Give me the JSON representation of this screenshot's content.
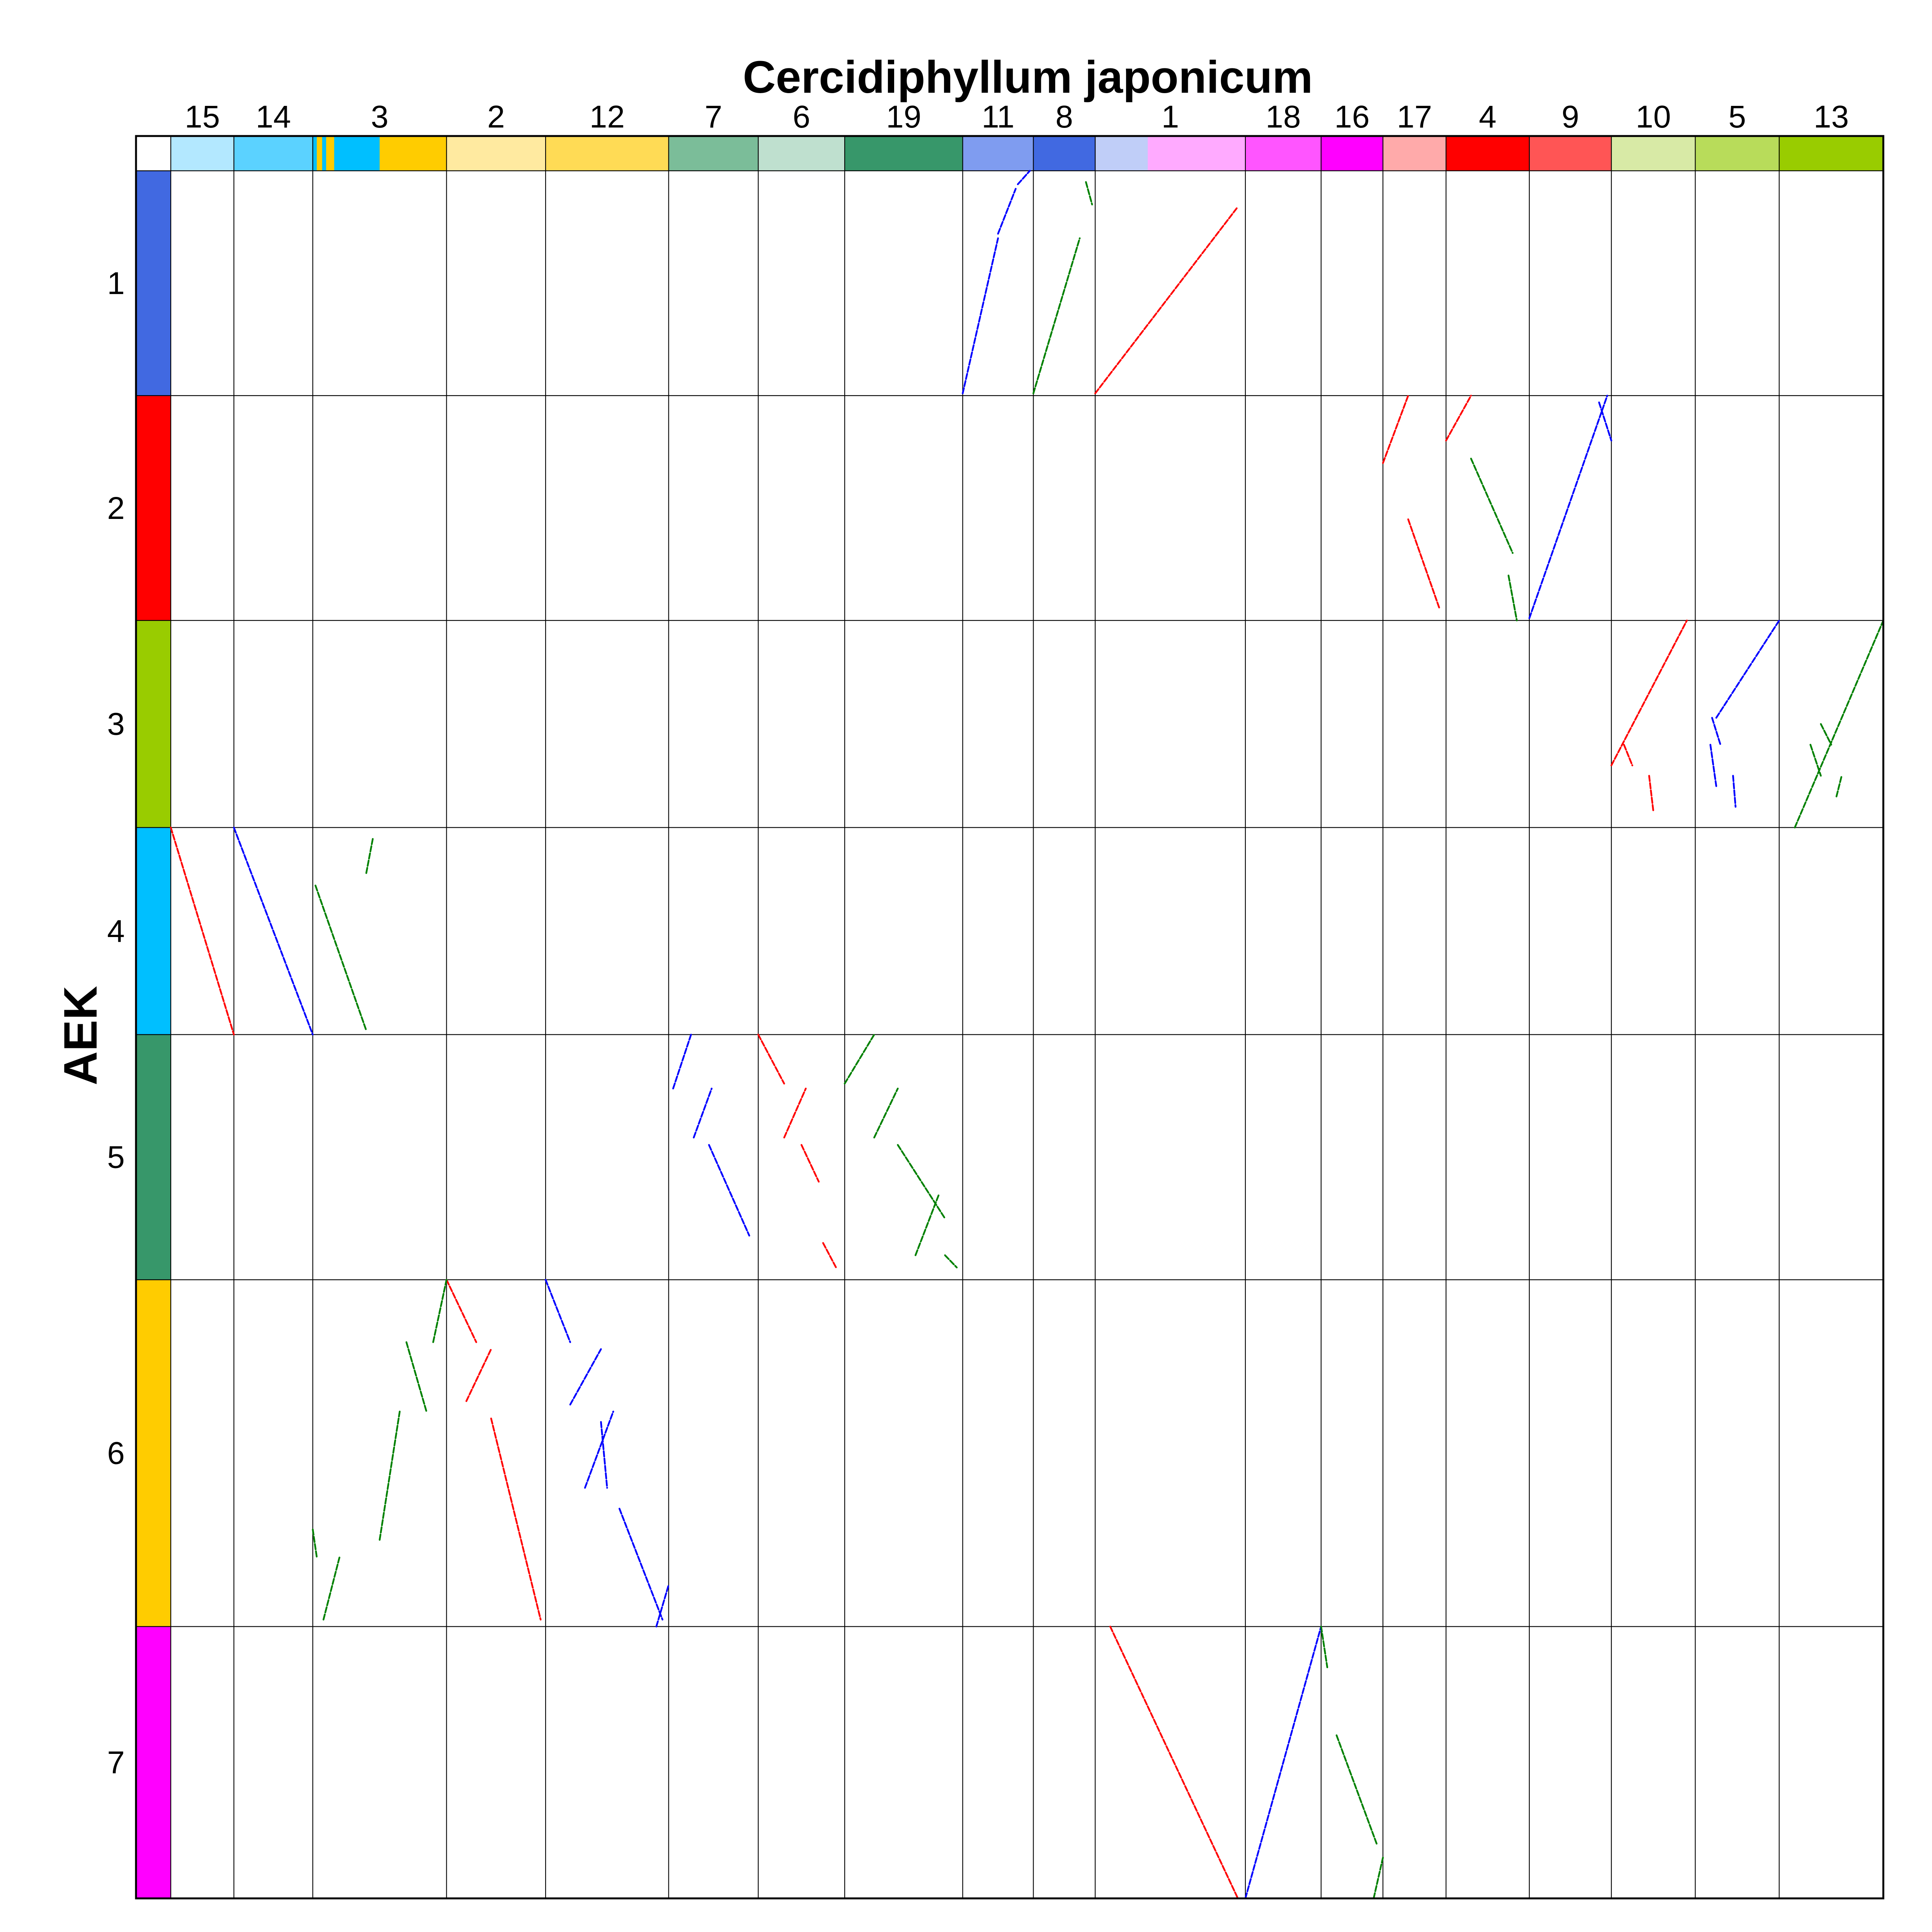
{
  "chart_data": {
    "type": "scatter",
    "title": "",
    "xlabel": "Cercidiphyllum japonicum",
    "ylabel": "AEK",
    "grid": true,
    "x_chromosomes": [
      {
        "name": "15",
        "length": 1.0,
        "color": "#b3e8ff"
      },
      {
        "name": "14",
        "length": 1.25,
        "color": "#5bd2ff"
      },
      {
        "name": "3",
        "length": 2.12,
        "color": "#00bfff"
      },
      {
        "name": "2",
        "length": 1.57,
        "color": "#ffeaa0"
      },
      {
        "name": "12",
        "length": 1.95,
        "color": "#ffdb55"
      },
      {
        "name": "7",
        "length": 1.42,
        "color": "#7bbd99"
      },
      {
        "name": "6",
        "length": 1.37,
        "color": "#bfe0cf"
      },
      {
        "name": "19",
        "length": 1.87,
        "color": "#37976a"
      },
      {
        "name": "11",
        "length": 1.12,
        "color": "#7f9cf0"
      },
      {
        "name": "8",
        "length": 0.98,
        "color": "#4169e1"
      },
      {
        "name": "1",
        "length": 2.38,
        "color": "#ffaaff"
      },
      {
        "name": "18",
        "length": 1.2,
        "color": "#ff55ff"
      },
      {
        "name": "16",
        "length": 0.98,
        "color": "#ff00ff"
      },
      {
        "name": "17",
        "length": 1.0,
        "color": "#ffaaaa"
      },
      {
        "name": "4",
        "length": 1.32,
        "color": "#ff0000"
      },
      {
        "name": "9",
        "length": 1.3,
        "color": "#ff5555"
      },
      {
        "name": "10",
        "length": 1.33,
        "color": "#d8eaa6"
      },
      {
        "name": "5",
        "length": 1.33,
        "color": "#b8dc5a"
      },
      {
        "name": "13",
        "length": 1.65,
        "color": "#99cc00"
      }
    ],
    "x_color_detail": {
      "3": [
        {
          "from": 0.0,
          "to": 0.03,
          "color": "#00bfff"
        },
        {
          "from": 0.03,
          "to": 0.07,
          "color": "#ffcc00"
        },
        {
          "from": 0.07,
          "to": 0.1,
          "color": "#00bfff"
        },
        {
          "from": 0.1,
          "to": 0.16,
          "color": "#ffcc00"
        },
        {
          "from": 0.16,
          "to": 0.5,
          "color": "#00bfff"
        },
        {
          "from": 0.5,
          "to": 1.0,
          "color": "#ffcc00"
        }
      ],
      "1": [
        {
          "from": 0.0,
          "to": 0.35,
          "color": "#c0cef8"
        },
        {
          "from": 0.35,
          "to": 1.0,
          "color": "#ffaaff"
        }
      ]
    },
    "y_chromosomes": [
      {
        "name": "1",
        "length": 1.77,
        "color": "#4169e1"
      },
      {
        "name": "2",
        "length": 1.77,
        "color": "#ff0000"
      },
      {
        "name": "3",
        "length": 1.63,
        "color": "#99cc00"
      },
      {
        "name": "4",
        "length": 1.63,
        "color": "#00bfff"
      },
      {
        "name": "5",
        "length": 1.93,
        "color": "#37976a"
      },
      {
        "name": "6",
        "length": 2.73,
        "color": "#ffcc00"
      },
      {
        "name": "7",
        "length": 2.14,
        "color": "#ff00ff"
      }
    ],
    "series": [
      {
        "color": "#0000ff",
        "segments": [
          {
            "x": "11",
            "y": "1",
            "x1": 0.0,
            "y1": 0.99,
            "x2": 0.5,
            "y2": 0.3
          },
          {
            "x": "11",
            "y": "1",
            "x1": 0.5,
            "y1": 0.28,
            "x2": 0.75,
            "y2": 0.08
          },
          {
            "x": "11",
            "y": "1",
            "x1": 0.78,
            "y1": 0.06,
            "x2": 0.95,
            "y2": 0.0
          },
          {
            "x": "14",
            "y": "4",
            "x1": 0.0,
            "y1": 0.0,
            "x2": 1.0,
            "y2": 1.0
          },
          {
            "x": "9",
            "y": "2",
            "x1": 0.0,
            "y1": 0.99,
            "x2": 0.95,
            "y2": 0.0
          },
          {
            "x": "9",
            "y": "2",
            "x1": 0.85,
            "y1": 0.03,
            "x2": 1.0,
            "y2": 0.2
          },
          {
            "x": "5",
            "y": "3",
            "x1": 0.25,
            "y1": 0.47,
            "x2": 1.0,
            "y2": 0.0
          },
          {
            "x": "5",
            "y": "3",
            "x1": 0.2,
            "y1": 0.47,
            "x2": 0.3,
            "y2": 0.6
          },
          {
            "x": "5",
            "y": "3",
            "x1": 0.18,
            "y1": 0.6,
            "x2": 0.25,
            "y2": 0.8
          },
          {
            "x": "5",
            "y": "3",
            "x1": 0.45,
            "y1": 0.75,
            "x2": 0.48,
            "y2": 0.9
          },
          {
            "x": "7",
            "y": "5",
            "x1": 0.05,
            "y1": 0.22,
            "x2": 0.25,
            "y2": 0.0
          },
          {
            "x": "7",
            "y": "5",
            "x1": 0.28,
            "y1": 0.42,
            "x2": 0.48,
            "y2": 0.22
          },
          {
            "x": "7",
            "y": "5",
            "x1": 0.45,
            "y1": 0.45,
            "x2": 0.9,
            "y2": 0.82
          },
          {
            "x": "12",
            "y": "6",
            "x1": 0.0,
            "y1": 0.0,
            "x2": 0.2,
            "y2": 0.18
          },
          {
            "x": "12",
            "y": "6",
            "x1": 0.2,
            "y1": 0.36,
            "x2": 0.45,
            "y2": 0.2
          },
          {
            "x": "12",
            "y": "6",
            "x1": 0.45,
            "y1": 0.41,
            "x2": 0.5,
            "y2": 0.6
          },
          {
            "x": "12",
            "y": "6",
            "x1": 0.32,
            "y1": 0.6,
            "x2": 0.55,
            "y2": 0.38
          },
          {
            "x": "12",
            "y": "6",
            "x1": 0.6,
            "y1": 0.66,
            "x2": 0.95,
            "y2": 0.98
          },
          {
            "x": "12",
            "y": "6",
            "x1": 0.9,
            "y1": 1.0,
            "x2": 1.0,
            "y2": 0.88
          },
          {
            "x": "18",
            "y": "7",
            "x1": 0.0,
            "y1": 1.0,
            "x2": 1.0,
            "y2": 0.0
          }
        ]
      },
      {
        "color": "#ff0000",
        "segments": [
          {
            "x": "1",
            "y": "1",
            "x1": 0.0,
            "y1": 0.99,
            "x2": 0.95,
            "y2": 0.16
          },
          {
            "x": "1",
            "y": "7",
            "x1": 0.1,
            "y1": 0.0,
            "x2": 0.95,
            "y2": 1.0
          },
          {
            "x": "15",
            "y": "4",
            "x1": 0.0,
            "y1": 0.0,
            "x2": 1.0,
            "y2": 1.0
          },
          {
            "x": "17",
            "y": "2",
            "x1": 0.0,
            "y1": 0.3,
            "x2": 0.4,
            "y2": 0.0
          },
          {
            "x": "17",
            "y": "2",
            "x1": 0.4,
            "y1": 0.55,
            "x2": 0.9,
            "y2": 0.95
          },
          {
            "x": "4",
            "y": "2",
            "x1": 0.0,
            "y1": 0.2,
            "x2": 0.3,
            "y2": 0.0
          },
          {
            "x": "6",
            "y": "5",
            "x1": 0.0,
            "y1": 0.0,
            "x2": 0.3,
            "y2": 0.2
          },
          {
            "x": "6",
            "y": "5",
            "x1": 0.3,
            "y1": 0.42,
            "x2": 0.55,
            "y2": 0.22
          },
          {
            "x": "6",
            "y": "5",
            "x1": 0.5,
            "y1": 0.45,
            "x2": 0.7,
            "y2": 0.6
          },
          {
            "x": "6",
            "y": "5",
            "x1": 0.75,
            "y1": 0.85,
            "x2": 0.9,
            "y2": 0.95
          },
          {
            "x": "2",
            "y": "6",
            "x1": 0.0,
            "y1": 0.0,
            "x2": 0.3,
            "y2": 0.18
          },
          {
            "x": "2",
            "y": "6",
            "x1": 0.2,
            "y1": 0.35,
            "x2": 0.45,
            "y2": 0.2
          },
          {
            "x": "2",
            "y": "6",
            "x1": 0.45,
            "y1": 0.4,
            "x2": 0.95,
            "y2": 0.98
          },
          {
            "x": "10",
            "y": "3",
            "x1": 0.0,
            "y1": 0.7,
            "x2": 0.9,
            "y2": 0.0
          },
          {
            "x": "10",
            "y": "3",
            "x1": 0.15,
            "y1": 0.6,
            "x2": 0.25,
            "y2": 0.7
          },
          {
            "x": "10",
            "y": "3",
            "x1": 0.45,
            "y1": 0.75,
            "x2": 0.5,
            "y2": 0.92
          }
        ]
      },
      {
        "color": "#008000",
        "segments": [
          {
            "x": "8",
            "y": "1",
            "x1": 0.0,
            "y1": 0.99,
            "x2": 0.75,
            "y2": 0.3
          },
          {
            "x": "8",
            "y": "1",
            "x1": 0.85,
            "y1": 0.05,
            "x2": 0.95,
            "y2": 0.15
          },
          {
            "x": "3",
            "y": "4",
            "x1": 0.02,
            "y1": 0.28,
            "x2": 0.4,
            "y2": 0.98
          },
          {
            "x": "3",
            "y": "4",
            "x1": 0.4,
            "y1": 0.22,
            "x2": 0.45,
            "y2": 0.05
          },
          {
            "x": "3",
            "y": "6",
            "x1": 0.0,
            "y1": 0.72,
            "x2": 0.03,
            "y2": 0.8
          },
          {
            "x": "3",
            "y": "6",
            "x1": 0.08,
            "y1": 0.98,
            "x2": 0.2,
            "y2": 0.8
          },
          {
            "x": "3",
            "y": "6",
            "x1": 0.5,
            "y1": 0.75,
            "x2": 0.65,
            "y2": 0.38
          },
          {
            "x": "3",
            "y": "6",
            "x1": 0.7,
            "y1": 0.18,
            "x2": 0.85,
            "y2": 0.38
          },
          {
            "x": "3",
            "y": "6",
            "x1": 0.9,
            "y1": 0.18,
            "x2": 1.0,
            "y2": 0.0
          },
          {
            "x": "4",
            "y": "2",
            "x1": 0.3,
            "y1": 0.28,
            "x2": 0.8,
            "y2": 0.7
          },
          {
            "x": "4",
            "y": "2",
            "x1": 0.75,
            "y1": 0.8,
            "x2": 0.85,
            "y2": 1.0
          },
          {
            "x": "19",
            "y": "5",
            "x1": 0.0,
            "y1": 0.2,
            "x2": 0.25,
            "y2": 0.0
          },
          {
            "x": "19",
            "y": "5",
            "x1": 0.25,
            "y1": 0.42,
            "x2": 0.45,
            "y2": 0.22
          },
          {
            "x": "19",
            "y": "5",
            "x1": 0.45,
            "y1": 0.45,
            "x2": 0.85,
            "y2": 0.75
          },
          {
            "x": "19",
            "y": "5",
            "x1": 0.6,
            "y1": 0.9,
            "x2": 0.8,
            "y2": 0.65
          },
          {
            "x": "19",
            "y": "5",
            "x1": 0.85,
            "y1": 0.9,
            "x2": 0.95,
            "y2": 0.95
          },
          {
            "x": "16",
            "y": "7",
            "x1": 0.25,
            "y1": 0.4,
            "x2": 0.9,
            "y2": 0.8
          },
          {
            "x": "16",
            "y": "7",
            "x1": 0.85,
            "y1": 1.0,
            "x2": 1.0,
            "y2": 0.85
          },
          {
            "x": "16",
            "y": "7",
            "x1": 0.0,
            "y1": 0.0,
            "x2": 0.1,
            "y2": 0.15
          },
          {
            "x": "13",
            "y": "3",
            "x1": 0.15,
            "y1": 1.0,
            "x2": 1.0,
            "y2": 0.0
          },
          {
            "x": "13",
            "y": "3",
            "x1": 0.3,
            "y1": 0.6,
            "x2": 0.4,
            "y2": 0.75
          },
          {
            "x": "13",
            "y": "3",
            "x1": 0.4,
            "y1": 0.5,
            "x2": 0.5,
            "y2": 0.6
          },
          {
            "x": "13",
            "y": "3",
            "x1": 0.55,
            "y1": 0.85,
            "x2": 0.6,
            "y2": 0.75
          }
        ]
      }
    ]
  }
}
